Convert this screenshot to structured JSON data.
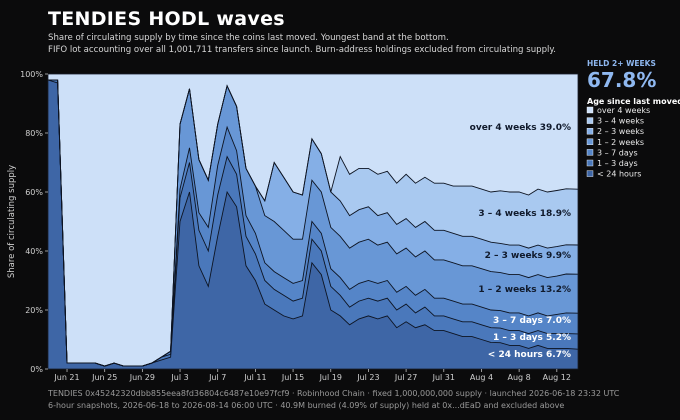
{
  "header": {
    "title": "TENDIES HODL waves",
    "subtitle_line1": "Share of circulating supply by time since the coins last moved. Youngest band at the bottom.",
    "subtitle_line2": "FIFO lot accounting over all 1,001,711 transfers since launch. Burn-address holdings excluded from circulating supply."
  },
  "footer": {
    "line1": "TENDIES 0x45242320dbb855eea8fd36804c6487e10e97fcf9 · Robinhood Chain · fixed 1,000,000,000 supply · launched 2026-06-18 23:32 UTC",
    "line2": "6-hour snapshots, 2026-06-18 to 2026-08-14 06:00 UTC · 40.9M burned (4.09% of supply) held at 0x...dEaD and excluded above"
  },
  "stat": {
    "label": "HELD 2+ WEEKS",
    "value": "67.8%"
  },
  "colors": {
    "background": "#0b0b0c",
    "accent": "#8fb8f0",
    "bands": [
      "#3e66a6",
      "#4a78bb",
      "#5585c8",
      "#6897d6",
      "#85afe6",
      "#a9c9f0",
      "#cde0f8"
    ]
  },
  "chart_data": {
    "type": "area",
    "stacked": true,
    "ylabel": "Share of circulating supply",
    "ylim": [
      0,
      100
    ],
    "yticks": [
      "0%",
      "20%",
      "40%",
      "60%",
      "80%",
      "100%"
    ],
    "xticks": [
      "Jun 21",
      "Jun 25",
      "Jun 29",
      "Jul 3",
      "Jul 7",
      "Jul 11",
      "Jul 15",
      "Jul 19",
      "Jul 23",
      "Jul 27",
      "Jul 31",
      "Aug 4",
      "Aug 8",
      "Aug 12"
    ],
    "legend_title": "Age since last moved",
    "legend_placement": "right",
    "dates": [
      "2026-06-19",
      "2026-06-20",
      "2026-06-21",
      "2026-06-22",
      "2026-06-23",
      "2026-06-24",
      "2026-06-25",
      "2026-06-26",
      "2026-06-27",
      "2026-06-28",
      "2026-06-29",
      "2026-06-30",
      "2026-07-01",
      "2026-07-02",
      "2026-07-03",
      "2026-07-04",
      "2026-07-05",
      "2026-07-06",
      "2026-07-07",
      "2026-07-08",
      "2026-07-09",
      "2026-07-10",
      "2026-07-11",
      "2026-07-12",
      "2026-07-13",
      "2026-07-14",
      "2026-07-15",
      "2026-07-16",
      "2026-07-17",
      "2026-07-18",
      "2026-07-19",
      "2026-07-20",
      "2026-07-21",
      "2026-07-22",
      "2026-07-23",
      "2026-07-24",
      "2026-07-25",
      "2026-07-26",
      "2026-07-27",
      "2026-07-28",
      "2026-07-29",
      "2026-07-30",
      "2026-07-31",
      "2026-08-01",
      "2026-08-02",
      "2026-08-03",
      "2026-08-04",
      "2026-08-05",
      "2026-08-06",
      "2026-08-07",
      "2026-08-08",
      "2026-08-09",
      "2026-08-10",
      "2026-08-11",
      "2026-08-12",
      "2026-08-13",
      "2026-08-14"
    ],
    "series": [
      {
        "name": "< 24 hours",
        "end_label": "6.7%",
        "values": [
          98,
          97,
          2,
          2,
          2,
          2,
          1,
          2,
          1,
          1,
          1,
          2,
          3,
          4,
          50,
          60,
          35,
          28,
          45,
          60,
          55,
          35,
          30,
          22,
          20,
          18,
          17,
          18,
          36,
          32,
          20,
          18,
          15,
          17,
          18,
          17,
          18,
          14,
          16,
          14,
          15,
          13,
          13,
          12,
          11,
          11,
          10,
          9,
          9,
          8,
          8,
          7,
          8,
          7,
          7,
          7,
          6.7
        ]
      },
      {
        "name": "1 – 3 days",
        "end_label": "5.2%",
        "values": [
          0,
          1,
          0,
          0,
          0,
          0,
          0,
          0,
          0,
          0,
          0,
          0,
          1,
          1,
          8,
          10,
          12,
          12,
          14,
          12,
          11,
          10,
          9,
          8,
          7,
          7,
          6,
          6,
          8,
          8,
          8,
          7,
          6,
          6,
          6,
          6,
          6,
          6,
          6,
          5,
          6,
          5,
          5,
          5,
          5,
          5,
          5,
          5,
          5,
          5,
          5,
          5,
          5,
          5,
          5,
          5,
          5.2
        ]
      },
      {
        "name": "3 – 7 days",
        "end_label": "7.0%",
        "values": [
          0,
          0,
          0,
          0,
          0,
          0,
          0,
          0,
          0,
          0,
          0,
          0,
          0,
          1,
          3,
          5,
          6,
          8,
          10,
          10,
          8,
          7,
          7,
          6,
          6,
          6,
          6,
          6,
          6,
          6,
          6,
          6,
          6,
          6,
          6,
          6,
          6,
          6,
          6,
          6,
          6,
          6,
          6,
          6,
          6,
          6,
          6,
          6,
          6,
          6,
          6,
          6,
          6,
          6,
          6.5,
          7,
          7.0
        ]
      },
      {
        "name": "1 – 2 weeks",
        "end_label": "13.2%",
        "values": [
          0,
          0,
          0,
          0,
          0,
          0,
          0,
          0,
          0,
          0,
          0,
          0,
          0,
          0,
          22,
          20,
          18,
          16,
          14,
          14,
          15,
          16,
          16,
          16,
          17,
          16,
          15,
          14,
          14,
          14,
          14,
          14,
          14,
          14,
          14,
          13,
          13,
          13,
          13,
          13,
          13,
          13,
          13,
          13,
          13,
          13,
          13,
          13,
          13,
          13,
          13,
          13,
          13,
          13,
          13,
          13.2,
          13.2
        ]
      },
      {
        "name": "2 – 3 weeks",
        "end_label": "9.9%",
        "values": [
          0,
          0,
          0,
          0,
          0,
          0,
          0,
          0,
          0,
          0,
          0,
          0,
          0,
          0,
          0,
          0,
          0,
          0,
          0,
          0,
          0,
          0,
          0,
          5,
          20,
          18,
          16,
          15,
          14,
          13,
          12,
          12,
          11,
          11,
          11,
          10,
          10,
          10,
          10,
          10,
          10,
          10,
          10,
          10,
          10,
          10,
          10,
          10,
          10,
          10,
          10,
          10,
          10,
          10,
          10,
          9.9,
          9.9
        ]
      },
      {
        "name": "3 – 4 weeks",
        "end_label": "18.9%",
        "values": [
          0,
          0,
          0,
          0,
          0,
          0,
          0,
          0,
          0,
          0,
          0,
          0,
          0,
          0,
          0,
          0,
          0,
          0,
          0,
          0,
          0,
          0,
          0,
          0,
          0,
          0,
          0,
          0,
          0,
          0,
          0,
          15,
          14,
          14,
          13,
          14,
          14,
          14,
          15,
          15,
          15,
          16,
          16,
          16,
          17,
          17,
          17,
          17,
          18,
          18,
          18,
          18,
          19,
          19,
          19,
          19,
          18.9
        ]
      },
      {
        "name": "over 4 weeks",
        "end_label": "39.0%",
        "values": [
          2,
          2,
          98,
          98,
          98,
          98,
          99,
          98,
          99,
          99,
          99,
          98,
          96,
          94,
          17,
          5,
          29,
          36,
          17,
          4,
          11,
          32,
          38,
          43,
          30,
          35,
          40,
          41,
          22,
          27,
          40,
          28,
          34,
          32,
          32,
          34,
          33,
          37,
          34,
          37,
          35,
          37,
          37,
          38,
          38,
          38,
          39,
          40,
          40,
          40,
          40,
          41,
          39,
          40,
          39.5,
          38.9,
          39.0
        ]
      }
    ]
  }
}
